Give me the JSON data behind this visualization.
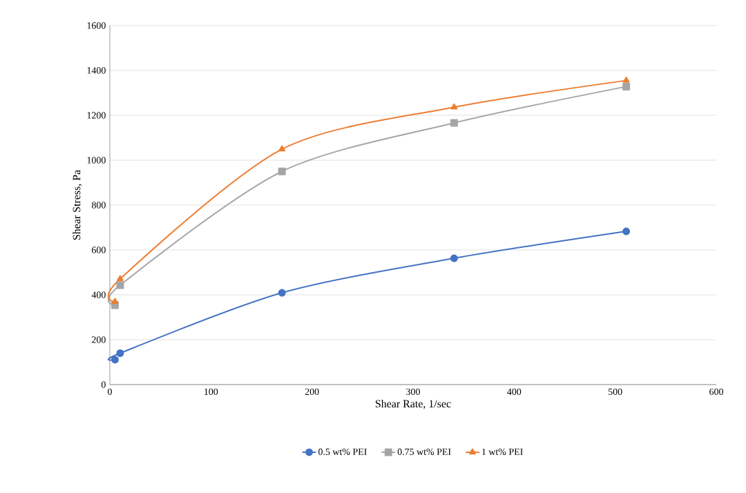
{
  "chart_data": {
    "type": "line",
    "xlabel": "Shear Rate, 1/sec",
    "ylabel": "Shear Stress, Pa",
    "x": [
      5.1,
      10.2,
      170.3,
      340.6,
      510.9
    ],
    "series": [
      {
        "name": "0.5 wt% PEI",
        "color": "#4472c4",
        "marker": "circle",
        "values": [
          111,
          140,
          409,
          563,
          683
        ]
      },
      {
        "name": "0.75 wt% PEI",
        "color": "#a5a5a5",
        "marker": "square",
        "values": [
          354,
          443,
          950,
          1166,
          1328
        ]
      },
      {
        "name": "1 wt% PEI",
        "color": "#ed7d31",
        "marker": "triangle",
        "values": [
          369,
          471,
          1049,
          1236,
          1355
        ]
      }
    ],
    "xlim": [
      0,
      600
    ],
    "xticks": [
      0,
      100,
      200,
      300,
      400,
      500,
      600
    ],
    "ylim": [
      0,
      1600
    ],
    "yticks": [
      0,
      200,
      400,
      600,
      800,
      1000,
      1200,
      1400,
      1600
    ],
    "grid": "y",
    "legend": "bottom",
    "line_style": "solid"
  }
}
